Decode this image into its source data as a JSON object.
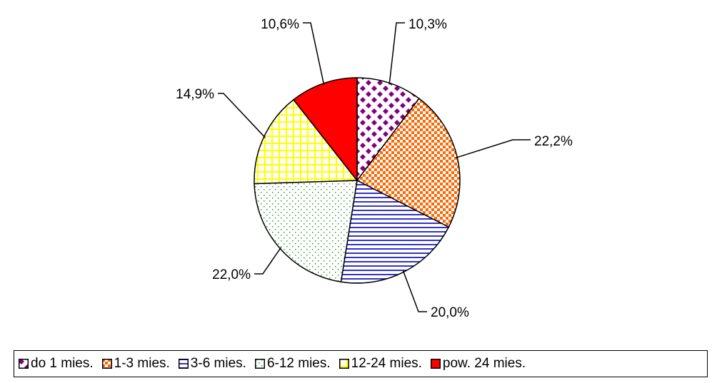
{
  "chart_data": {
    "type": "pie",
    "title": "",
    "categories": [
      "do 1 mies.",
      "1-3 mies.",
      "3-6 mies.",
      "6-12 mies.",
      "12-24 mies.",
      "pow. 24 mies."
    ],
    "values": [
      10.3,
      22.2,
      20.0,
      22.0,
      14.9,
      10.6
    ],
    "labels": [
      "10,3%",
      "22,2%",
      "20,0%",
      "22,0%",
      "14,9%",
      "10,6%"
    ],
    "start_angle_deg": 0,
    "direction": "clockwise",
    "legend": "bottom",
    "colors": {
      "do 1 mies.": "#800080",
      "1-3 mies.": "#ff6600",
      "3-6 mies.": "#3333cc",
      "6-12 mies.": "#339933",
      "12-24 mies.": "#ffff00",
      "pow. 24 mies.": "#ff0000"
    }
  }
}
